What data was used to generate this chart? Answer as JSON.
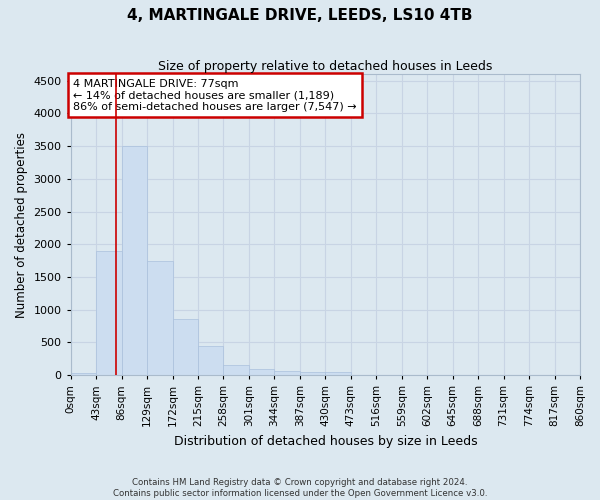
{
  "title": "4, MARTINGALE DRIVE, LEEDS, LS10 4TB",
  "subtitle": "Size of property relative to detached houses in Leeds",
  "xlabel": "Distribution of detached houses by size in Leeds",
  "ylabel": "Number of detached properties",
  "footer_line1": "Contains HM Land Registry data © Crown copyright and database right 2024.",
  "footer_line2": "Contains public sector information licensed under the Open Government Licence v3.0.",
  "annotation_line1": "4 MARTINGALE DRIVE: 77sqm",
  "annotation_line2": "← 14% of detached houses are smaller (1,189)",
  "annotation_line3": "86% of semi-detached houses are larger (7,547) →",
  "bar_color": "#ccddf0",
  "bar_edge_color": "#aac0dc",
  "red_line_x": 77,
  "categories": [
    "0sqm",
    "43sqm",
    "86sqm",
    "129sqm",
    "172sqm",
    "215sqm",
    "258sqm",
    "301sqm",
    "344sqm",
    "387sqm",
    "430sqm",
    "473sqm",
    "516sqm",
    "559sqm",
    "602sqm",
    "645sqm",
    "688sqm",
    "731sqm",
    "774sqm",
    "817sqm",
    "860sqm"
  ],
  "bin_edges": [
    0,
    43,
    86,
    129,
    172,
    215,
    258,
    301,
    344,
    387,
    430,
    473,
    516,
    559,
    602,
    645,
    688,
    731,
    774,
    817,
    860
  ],
  "bar_heights": [
    25,
    1900,
    3500,
    1750,
    850,
    440,
    155,
    95,
    60,
    50,
    40,
    0,
    0,
    0,
    0,
    0,
    0,
    0,
    0,
    0
  ],
  "ylim": [
    0,
    4600
  ],
  "yticks": [
    0,
    500,
    1000,
    1500,
    2000,
    2500,
    3000,
    3500,
    4000,
    4500
  ],
  "annotation_box_color": "#ffffff",
  "annotation_box_edge_color": "#cc0000",
  "grid_color": "#c8d4e4",
  "bg_color": "#dce8f0",
  "fig_bg_color": "#dce8f0"
}
